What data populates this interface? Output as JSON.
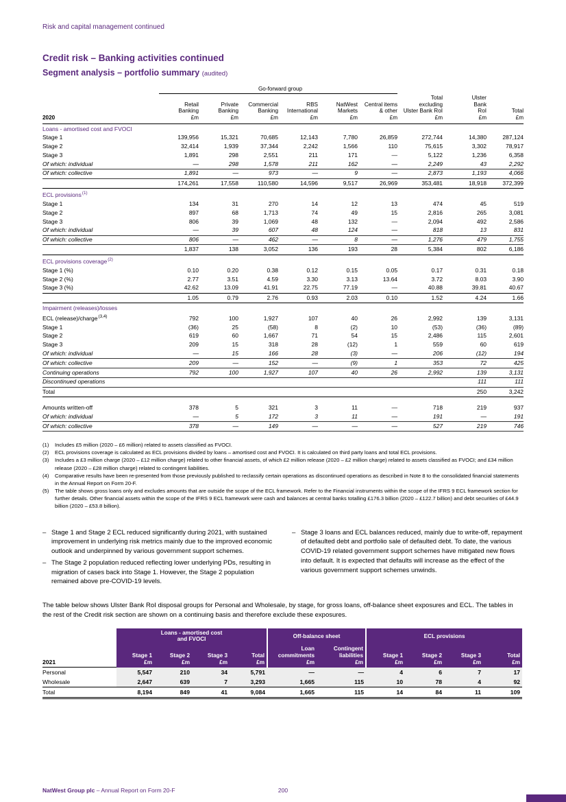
{
  "theme": {
    "accent": "#5a287d",
    "header_bg": "#5a287d",
    "row_shade": "#ededed",
    "text": "#000000"
  },
  "page": {
    "running_header": "Risk and capital management continued",
    "title": "Credit risk – Banking activities continued",
    "subtitle": "Segment analysis – portfolio summary",
    "subtitle_note": "(audited)",
    "intro_paragraph": "The table below shows Ulster Bank RoI disposal groups for Personal and Wholesale, by stage, for gross loans, off-balance sheet exposures and ECL. The tables in the rest of the Credit risk section are shown on a continuing basis and therefore exclude these exposures.",
    "footer": {
      "brand": "NatWest Group plc",
      "suffix": " – Annual Report on Form 20-F",
      "page_number": "200"
    }
  },
  "main_table": {
    "group_header": "Go-forward group",
    "year": "2020",
    "unit": "£m",
    "columns": [
      {
        "lines": [
          "Retail",
          "Banking"
        ]
      },
      {
        "lines": [
          "Private",
          "Banking"
        ]
      },
      {
        "lines": [
          "Commercial",
          "Banking"
        ]
      },
      {
        "lines": [
          "RBS",
          "International"
        ]
      },
      {
        "lines": [
          "NatWest",
          "Markets"
        ]
      },
      {
        "lines": [
          "Central items",
          "& other"
        ]
      },
      {
        "lines": [
          "Total",
          "excluding",
          "Ulster Bank RoI"
        ]
      },
      {
        "lines": [
          "Ulster",
          "Bank",
          "RoI"
        ]
      },
      {
        "lines": [
          "Total"
        ]
      }
    ],
    "sections": [
      {
        "title": "Loans - amortised cost and FVOCI",
        "rows": [
          {
            "label": "Stage 1",
            "values": [
              "139,956",
              "15,321",
              "70,685",
              "12,143",
              "7,780",
              "26,859",
              "272,744",
              "14,380",
              "287,124"
            ]
          },
          {
            "label": "Stage 2",
            "values": [
              "32,414",
              "1,939",
              "37,344",
              "2,242",
              "1,566",
              "110",
              "75,615",
              "3,302",
              "78,917"
            ]
          },
          {
            "label": "Stage 3",
            "values": [
              "1,891",
              "298",
              "2,551",
              "211",
              "171",
              "—",
              "5,122",
              "1,236",
              "6,358"
            ]
          },
          {
            "label": "Of which: individual",
            "style": "italic",
            "values": [
              "—",
              "298",
              "1,578",
              "211",
              "162",
              "—",
              "2,249",
              "43",
              "2,292"
            ]
          },
          {
            "label": "Of which: collective",
            "style": "italic",
            "values": [
              "1,891",
              "—",
              "973",
              "—",
              "9",
              "—",
              "2,873",
              "1,193",
              "4,066"
            ]
          },
          {
            "label": "",
            "style": "subtotal",
            "values": [
              "174,261",
              "17,558",
              "110,580",
              "14,596",
              "9,517",
              "26,969",
              "353,481",
              "18,918",
              "372,399"
            ]
          }
        ]
      },
      {
        "title": "ECL provisions",
        "sup": "(1)",
        "rows": [
          {
            "label": "Stage 1",
            "values": [
              "134",
              "31",
              "270",
              "14",
              "12",
              "13",
              "474",
              "45",
              "519"
            ]
          },
          {
            "label": "Stage 2",
            "values": [
              "897",
              "68",
              "1,713",
              "74",
              "49",
              "15",
              "2,816",
              "265",
              "3,081"
            ]
          },
          {
            "label": "Stage 3",
            "values": [
              "806",
              "39",
              "1,069",
              "48",
              "132",
              "—",
              "2,094",
              "492",
              "2,586"
            ]
          },
          {
            "label": "Of which: individual",
            "style": "italic",
            "values": [
              "—",
              "39",
              "607",
              "48",
              "124",
              "—",
              "818",
              "13",
              "831"
            ]
          },
          {
            "label": "Of which: collective",
            "style": "italic",
            "values": [
              "806",
              "—",
              "462",
              "—",
              "8",
              "—",
              "1,276",
              "479",
              "1,755"
            ]
          },
          {
            "label": "",
            "style": "subtotal",
            "values": [
              "1,837",
              "138",
              "3,052",
              "136",
              "193",
              "28",
              "5,384",
              "802",
              "6,186"
            ]
          }
        ]
      },
      {
        "title": "ECL provisions coverage",
        "sup": "(2)",
        "rows": [
          {
            "label": "Stage 1 (%)",
            "values": [
              "0.10",
              "0.20",
              "0.38",
              "0.12",
              "0.15",
              "0.05",
              "0.17",
              "0.31",
              "0.18"
            ]
          },
          {
            "label": "Stage 2 (%)",
            "values": [
              "2.77",
              "3.51",
              "4.59",
              "3.30",
              "3.13",
              "13.64",
              "3.72",
              "8.03",
              "3.90"
            ]
          },
          {
            "label": "Stage 3 (%)",
            "values": [
              "42.62",
              "13.09",
              "41.91",
              "22.75",
              "77.19",
              "—",
              "40.88",
              "39.81",
              "40.67"
            ]
          },
          {
            "label": "",
            "style": "subtotal",
            "values": [
              "1.05",
              "0.79",
              "2.76",
              "0.93",
              "2.03",
              "0.10",
              "1.52",
              "4.24",
              "1.66"
            ]
          }
        ]
      },
      {
        "title": "Impairment (releases)/losses",
        "rows": [
          {
            "label": "ECL (release)/charge",
            "sup": "(3,4)",
            "values": [
              "792",
              "100",
              "1,927",
              "107",
              "40",
              "26",
              "2,992",
              "139",
              "3,131"
            ]
          },
          {
            "label": "Stage 1",
            "values": [
              "(36)",
              "25",
              "(58)",
              "8",
              "(2)",
              "10",
              "(53)",
              "(36)",
              "(89)"
            ]
          },
          {
            "label": "Stage 2",
            "values": [
              "619",
              "60",
              "1,667",
              "71",
              "54",
              "15",
              "2,486",
              "115",
              "2,601"
            ]
          },
          {
            "label": "Stage 3",
            "values": [
              "209",
              "15",
              "318",
              "28",
              "(12)",
              "1",
              "559",
              "60",
              "619"
            ]
          },
          {
            "label": "Of which: individual",
            "style": "italic",
            "values": [
              "—",
              "15",
              "166",
              "28",
              "(3)",
              "—",
              "206",
              "(12)",
              "194"
            ]
          },
          {
            "label": "Of which: collective",
            "style": "italic",
            "values": [
              "209",
              "—",
              "152",
              "—",
              "(9)",
              "1",
              "353",
              "72",
              "425"
            ]
          },
          {
            "label": "Continuing operations",
            "style": "italic",
            "values": [
              "792",
              "100",
              "1,927",
              "107",
              "40",
              "26",
              "2,992",
              "139",
              "3,131"
            ]
          },
          {
            "label": "Discontinued operations",
            "style": "italic",
            "values": [
              "",
              "",
              "",
              "",
              "",
              "",
              "",
              "111",
              "111"
            ]
          },
          {
            "label": "Total",
            "style": "subtotal",
            "values": [
              "",
              "",
              "",
              "",
              "",
              "",
              "",
              "250",
              "3,242"
            ]
          }
        ]
      },
      {
        "title": null,
        "rows": [
          {
            "style": "spacer"
          },
          {
            "label": "Amounts written-off",
            "values": [
              "378",
              "5",
              "321",
              "3",
              "11",
              "—",
              "718",
              "219",
              "937"
            ]
          },
          {
            "label": "Of which: individual",
            "style": "italic",
            "values": [
              "—",
              "5",
              "172",
              "3",
              "11",
              "—",
              "191",
              "—",
              "191"
            ]
          },
          {
            "label": "Of which: collective",
            "style": "italic",
            "values": [
              "378",
              "—",
              "149",
              "—",
              "—",
              "—",
              "527",
              "219",
              "746"
            ]
          }
        ]
      }
    ]
  },
  "footnotes": [
    {
      "num": "(1)",
      "text": "Includes £5 million (2020 – £6 million) related to assets classified as FVOCI."
    },
    {
      "num": "(2)",
      "text": "ECL provisions coverage is calculated as ECL provisions divided by loans – amortised cost and FVOCI. It is calculated on third party loans and total ECL provisions."
    },
    {
      "num": "(3)",
      "text": "Includes a £3 million charge (2020 – £12 million charge) related to other financial assets, of which £2 million release (2020 – £2 million charge) related to assets classified as FVOCI; and £34 million release (2020 – £28 million charge) related to contingent liabilities."
    },
    {
      "num": "(4)",
      "text": "Comparative results have been re-presented from those previously published to reclassify certain operations as discontinued operations as described in Note 8 to the consolidated financial statements in the Annual Report on Form 20-F."
    },
    {
      "num": "(5)",
      "text": "The table shows gross loans only and excludes amounts that are outside the scope of the ECL framework. Refer to the Financial instruments within the scope of the IFRS 9 ECL framework section for further details. Other financial assets within the scope of the IFRS 9 ECL framework were cash and balances at central banks totalling £176.3 billion (2020 – £122.7 billion) and debt securities of £44.9 billion (2020 – £53.8 billion)."
    }
  ],
  "bullets": {
    "marker": "–",
    "columns": [
      [
        "Stage 1 and Stage 2 ECL reduced significantly during 2021, with sustained improvement in underlying risk metrics mainly due to the improved economic outlook and underpinned by various government support schemes.",
        "The Stage 2 population reduced reflecting lower underlying PDs, resulting in migration of cases back into Stage 1. However, the Stage 2 population remained above pre-COVID-19 levels."
      ],
      [
        "Stage 3 loans and ECL balances reduced, mainly due to write-off, repayment of defaulted debt and portfolio sale of defaulted debt. To date, the various COVID-19 related government support schemes have mitigated new flows into default. It is expected that defaults will increase as the effect of the various government support schemes unwinds."
      ]
    ]
  },
  "disposal_table": {
    "year": "2021",
    "unit": "£m",
    "groups": [
      {
        "lines": [
          "Loans - amortised cost",
          "and FVOCI"
        ],
        "span": 4
      },
      {
        "lines": [
          "Off-balance sheet"
        ],
        "span": 2
      },
      {
        "lines": [
          "ECL provisions"
        ],
        "span": 4
      }
    ],
    "columns": [
      {
        "lines": [
          "Stage 1"
        ]
      },
      {
        "lines": [
          "Stage 2"
        ]
      },
      {
        "lines": [
          "Stage 3"
        ]
      },
      {
        "lines": [
          "Total"
        ]
      },
      {
        "lines": [
          "Loan",
          "commitments"
        ]
      },
      {
        "lines": [
          "Contingent",
          "liabilities"
        ]
      },
      {
        "lines": [
          "Stage 1"
        ]
      },
      {
        "lines": [
          "Stage 2"
        ]
      },
      {
        "lines": [
          "Stage 3"
        ]
      },
      {
        "lines": [
          "Total"
        ]
      }
    ],
    "rows": [
      {
        "label": "Personal",
        "values": [
          "5,547",
          "210",
          "34",
          "5,791",
          "—",
          "—",
          "4",
          "6",
          "7",
          "17"
        ]
      },
      {
        "label": "Wholesale",
        "values": [
          "2,647",
          "639",
          "7",
          "3,293",
          "1,665",
          "115",
          "10",
          "78",
          "4",
          "92"
        ]
      },
      {
        "label": "Total",
        "style": "total",
        "values": [
          "8,194",
          "849",
          "41",
          "9,084",
          "1,665",
          "115",
          "14",
          "84",
          "11",
          "109"
        ]
      }
    ]
  }
}
